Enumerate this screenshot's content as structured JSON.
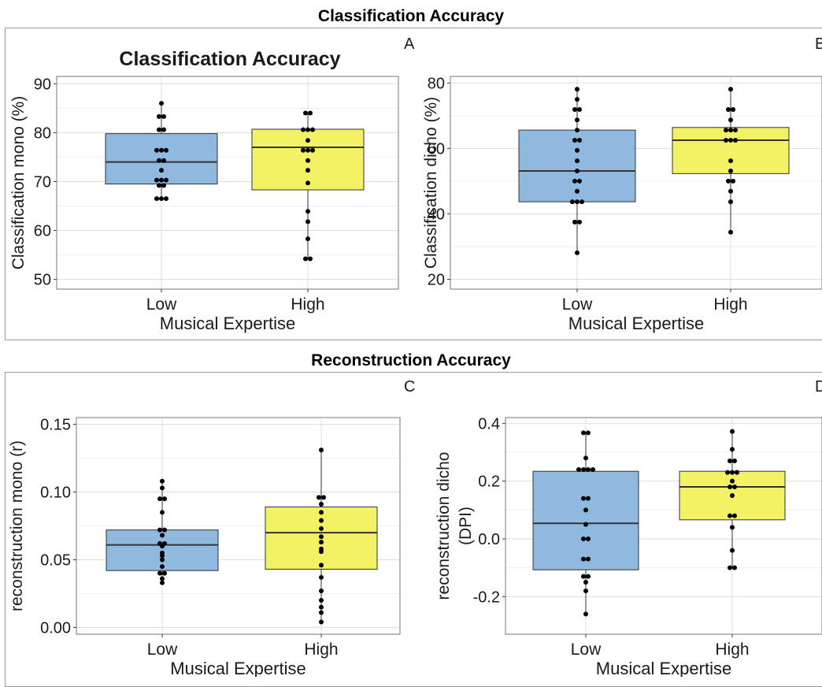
{
  "sections": {
    "top_title": "Classification Accuracy",
    "bottom_title": "Reconstruction Accuracy"
  },
  "colors": {
    "low": "#8fb9de",
    "high": "#f2f264",
    "point": "#000000",
    "median": "#333333"
  },
  "chart_data": [
    {
      "type": "boxplot",
      "panel_label": "A",
      "title": "Classification Accuracy",
      "xlabel": "Musical Expertise",
      "ylabel": "Classification mono (%)",
      "categories": [
        "Low",
        "High"
      ],
      "ylim": [
        48,
        91.5
      ],
      "yticks": [
        "50",
        "60",
        "70",
        "80",
        "90"
      ],
      "yticks_values": [
        50,
        60,
        70,
        80,
        90
      ],
      "boxes": [
        {
          "q1": 69.5,
          "median": 74,
          "q3": 79.8,
          "wmin": 66.5,
          "wmax": 86
        },
        {
          "q1": 68.3,
          "median": 77,
          "q3": 80.7,
          "wmin": 54.2,
          "wmax": 84
        }
      ],
      "points": [
        [
          66.5,
          66.5,
          66.5,
          69.2,
          69.2,
          70.3,
          70.3,
          70.3,
          72.3,
          74.3,
          74.3,
          76.4,
          76.4,
          76.4,
          80.6,
          80.6,
          83.3,
          83.3,
          86
        ],
        [
          54.2,
          54.2,
          58.3,
          61.8,
          63.9,
          69.7,
          72.3,
          74.3,
          76.4,
          76.4,
          76.4,
          78.4,
          80.6,
          80.6,
          80.6,
          84,
          84
        ]
      ],
      "grid": true
    },
    {
      "type": "boxplot",
      "panel_label": "B",
      "xlabel": "Musical Expertise",
      "ylabel": "Classification dicho (%)",
      "categories": [
        "Low",
        "High"
      ],
      "ylim": [
        17,
        82
      ],
      "yticks": [
        "20",
        "40",
        "60",
        "80"
      ],
      "yticks_values": [
        20,
        40,
        60,
        80
      ],
      "boxes": [
        {
          "q1": 43.7,
          "median": 53.1,
          "q3": 65.6,
          "wmin": 28.1,
          "wmax": 78.1
        },
        {
          "q1": 52.3,
          "median": 62.5,
          "q3": 66.4,
          "wmin": 34.4,
          "wmax": 78.1
        }
      ],
      "points": [
        [
          28.1,
          37.5,
          37.5,
          43.7,
          43.7,
          43.7,
          46.9,
          50,
          50,
          53.1,
          56.2,
          59.4,
          62.5,
          62.5,
          65.6,
          68.7,
          71.9,
          71.9,
          75,
          78.1
        ],
        [
          34.4,
          43.7,
          46.9,
          50,
          50,
          53.1,
          56.2,
          62.5,
          62.5,
          62.5,
          65.6,
          65.6,
          65.6,
          68.7,
          71.9,
          71.9,
          78.1
        ]
      ],
      "grid": true
    },
    {
      "type": "boxplot",
      "panel_label": "C",
      "xlabel": "Musical Expertise",
      "ylabel": "reconstruction mono (r)",
      "categories": [
        "Low",
        "High"
      ],
      "ylim": [
        -0.005,
        0.155
      ],
      "yticks": [
        "0.00",
        "0.05",
        "0.10",
        "0.15"
      ],
      "yticks_values": [
        0,
        0.05,
        0.1,
        0.15
      ],
      "boxes": [
        {
          "q1": 0.042,
          "median": 0.061,
          "q3": 0.072,
          "wmin": 0.033,
          "wmax": 0.108
        },
        {
          "q1": 0.043,
          "median": 0.07,
          "q3": 0.089,
          "wmin": 0.004,
          "wmax": 0.131
        }
      ],
      "points": [
        [
          0.033,
          0.036,
          0.04,
          0.04,
          0.045,
          0.05,
          0.053,
          0.055,
          0.06,
          0.062,
          0.062,
          0.068,
          0.072,
          0.072,
          0.085,
          0.095,
          0.095,
          0.103,
          0.108
        ],
        [
          0.004,
          0.011,
          0.015,
          0.02,
          0.027,
          0.037,
          0.046,
          0.056,
          0.058,
          0.063,
          0.067,
          0.073,
          0.079,
          0.085,
          0.091,
          0.096,
          0.096,
          0.131
        ]
      ],
      "grid": true
    },
    {
      "type": "boxplot",
      "panel_label": "D",
      "xlabel": "Musical Expertise",
      "ylabel_lines": [
        "reconstruction dicho",
        "(DPI)"
      ],
      "categories": [
        "Low",
        "High"
      ],
      "ylim": [
        -0.33,
        0.42
      ],
      "yticks": [
        "-0.2",
        "0.0",
        "0.2",
        "0.4"
      ],
      "yticks_values": [
        -0.2,
        0,
        0.2,
        0.4
      ],
      "boxes": [
        {
          "q1": -0.107,
          "median": 0.054,
          "q3": 0.234,
          "wmin": -0.26,
          "wmax": 0.367
        },
        {
          "q1": 0.066,
          "median": 0.18,
          "q3": 0.234,
          "wmin": -0.1,
          "wmax": 0.372
        }
      ],
      "points": [
        [
          -0.26,
          -0.18,
          -0.15,
          -0.13,
          -0.13,
          -0.07,
          -0.07,
          0.0,
          0.0,
          0.05,
          0.1,
          0.14,
          0.14,
          0.24,
          0.24,
          0.24,
          0.24,
          0.28,
          0.367,
          0.367
        ],
        [
          -0.1,
          -0.1,
          -0.04,
          0.04,
          0.08,
          0.08,
          0.15,
          0.18,
          0.18,
          0.2,
          0.23,
          0.23,
          0.23,
          0.27,
          0.27,
          0.31,
          0.372
        ]
      ],
      "grid": true
    }
  ]
}
